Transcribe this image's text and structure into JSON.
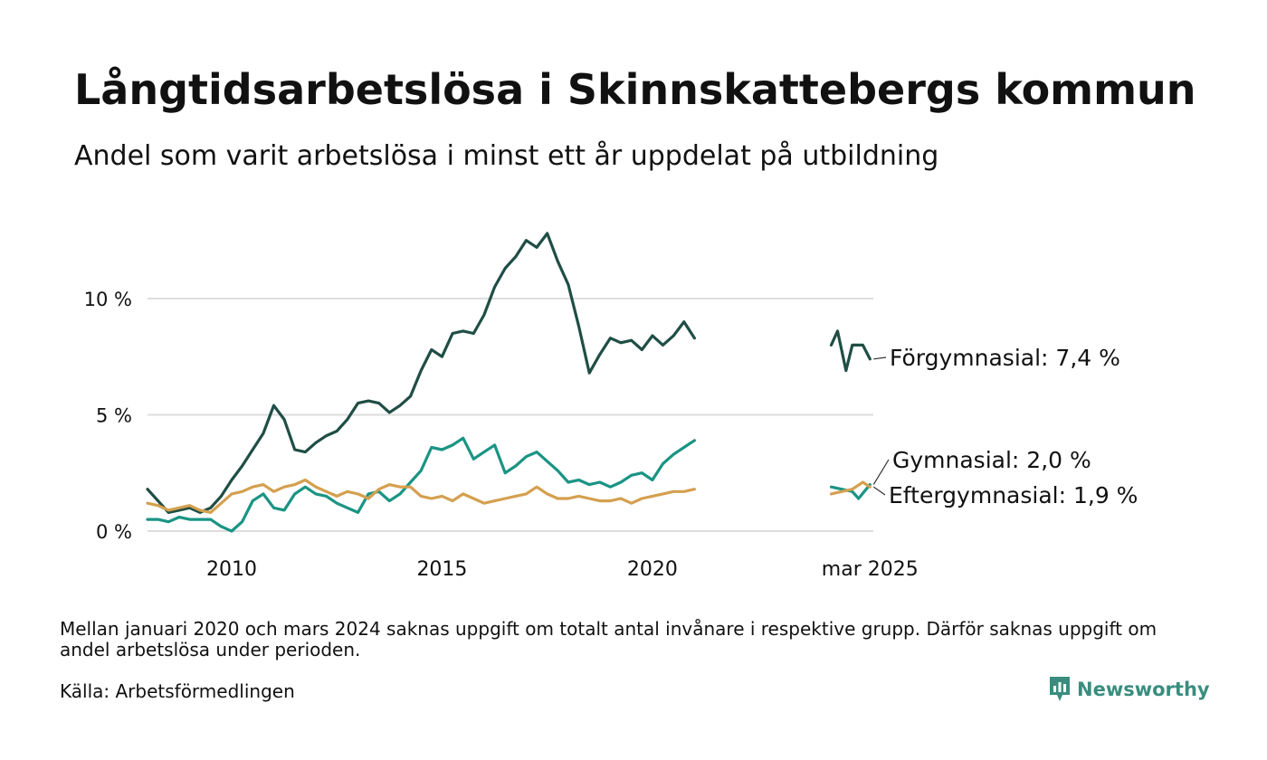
{
  "title": "Långtidsarbetslösa i Skinnskattebergs kommun",
  "subtitle": "Andel som varit arbetslösa i minst ett år uppdelat på utbildning",
  "footnote": "Mellan januari 2020 och mars 2024 saknas uppgift om totalt antal invånare i respektive grupp. Därför saknas uppgift om andel arbetslösa under perioden.",
  "source": "Källa: Arbetsförmedlingen",
  "brand": "Newsworthy",
  "colors": {
    "forgymnasial": "#1f4e45",
    "gymnasial": "#1a9484",
    "eftergymnasial": "#d4a04f",
    "grid": "#dddddd",
    "brand": "#3a8d7e"
  },
  "chart_data": {
    "type": "line",
    "x_unit": "year",
    "xlim": [
      2008.0,
      2025.25
    ],
    "ylim": [
      0,
      13.5
    ],
    "y_ticks": [
      {
        "value": 0,
        "label": "0 %"
      },
      {
        "value": 5,
        "label": "5 %"
      },
      {
        "value": 10,
        "label": "10 %"
      }
    ],
    "x_ticks": [
      {
        "value": 2010,
        "label": "2010"
      },
      {
        "value": 2015,
        "label": "2015"
      },
      {
        "value": 2020,
        "label": "2020"
      },
      {
        "value": 2025.17,
        "label": "mar 2025"
      }
    ],
    "grid": true,
    "legend": "end-labels",
    "series": [
      {
        "name": "Förgymnasial",
        "end_label": "Förgymnasial: 7,4 %",
        "color": "#1f4e45",
        "segments": [
          [
            [
              2008.0,
              1.8
            ],
            [
              2008.25,
              1.3
            ],
            [
              2008.5,
              0.8
            ],
            [
              2008.75,
              0.9
            ],
            [
              2009.0,
              1.0
            ],
            [
              2009.25,
              0.8
            ],
            [
              2009.5,
              1.0
            ],
            [
              2009.75,
              1.5
            ],
            [
              2010.0,
              2.2
            ],
            [
              2010.25,
              2.8
            ],
            [
              2010.5,
              3.5
            ],
            [
              2010.75,
              4.2
            ],
            [
              2011.0,
              5.4
            ],
            [
              2011.25,
              4.8
            ],
            [
              2011.5,
              3.5
            ],
            [
              2011.75,
              3.4
            ],
            [
              2012.0,
              3.8
            ],
            [
              2012.25,
              4.1
            ],
            [
              2012.5,
              4.3
            ],
            [
              2012.75,
              4.8
            ],
            [
              2013.0,
              5.5
            ],
            [
              2013.25,
              5.6
            ],
            [
              2013.5,
              5.5
            ],
            [
              2013.75,
              5.1
            ],
            [
              2014.0,
              5.4
            ],
            [
              2014.25,
              5.8
            ],
            [
              2014.5,
              6.9
            ],
            [
              2014.75,
              7.8
            ],
            [
              2015.0,
              7.5
            ],
            [
              2015.25,
              8.5
            ],
            [
              2015.5,
              8.6
            ],
            [
              2015.75,
              8.5
            ],
            [
              2016.0,
              9.3
            ],
            [
              2016.25,
              10.5
            ],
            [
              2016.5,
              11.3
            ],
            [
              2016.75,
              11.8
            ],
            [
              2017.0,
              12.5
            ],
            [
              2017.25,
              12.2
            ],
            [
              2017.5,
              12.8
            ],
            [
              2017.75,
              11.6
            ],
            [
              2018.0,
              10.6
            ],
            [
              2018.25,
              8.8
            ],
            [
              2018.5,
              6.8
            ],
            [
              2018.75,
              7.6
            ],
            [
              2019.0,
              8.3
            ],
            [
              2019.25,
              8.1
            ],
            [
              2019.5,
              8.2
            ],
            [
              2019.75,
              7.8
            ],
            [
              2020.0,
              8.4
            ],
            [
              2020.25,
              8.0
            ],
            [
              2020.5,
              8.4
            ],
            [
              2020.75,
              9.0
            ],
            [
              2021.0,
              8.3
            ]
          ],
          [
            [
              2024.25,
              8.0
            ],
            [
              2024.4,
              8.6
            ],
            [
              2024.6,
              6.9
            ],
            [
              2024.75,
              8.0
            ],
            [
              2025.0,
              8.0
            ],
            [
              2025.17,
              7.4
            ]
          ]
        ]
      },
      {
        "name": "Gymnasial",
        "end_label": "Gymnasial: 2,0 %",
        "color": "#1a9484",
        "segments": [
          [
            [
              2008.0,
              0.5
            ],
            [
              2008.25,
              0.5
            ],
            [
              2008.5,
              0.4
            ],
            [
              2008.75,
              0.6
            ],
            [
              2009.0,
              0.5
            ],
            [
              2009.25,
              0.5
            ],
            [
              2009.5,
              0.5
            ],
            [
              2009.75,
              0.2
            ],
            [
              2010.0,
              0.0
            ],
            [
              2010.25,
              0.4
            ],
            [
              2010.5,
              1.3
            ],
            [
              2010.75,
              1.6
            ],
            [
              2011.0,
              1.0
            ],
            [
              2011.25,
              0.9
            ],
            [
              2011.5,
              1.6
            ],
            [
              2011.75,
              1.9
            ],
            [
              2012.0,
              1.6
            ],
            [
              2012.25,
              1.5
            ],
            [
              2012.5,
              1.2
            ],
            [
              2012.75,
              1.0
            ],
            [
              2013.0,
              0.8
            ],
            [
              2013.25,
              1.6
            ],
            [
              2013.5,
              1.7
            ],
            [
              2013.75,
              1.3
            ],
            [
              2014.0,
              1.6
            ],
            [
              2014.25,
              2.1
            ],
            [
              2014.5,
              2.6
            ],
            [
              2014.75,
              3.6
            ],
            [
              2015.0,
              3.5
            ],
            [
              2015.25,
              3.7
            ],
            [
              2015.5,
              4.0
            ],
            [
              2015.75,
              3.1
            ],
            [
              2016.0,
              3.4
            ],
            [
              2016.25,
              3.7
            ],
            [
              2016.5,
              2.5
            ],
            [
              2016.75,
              2.8
            ],
            [
              2017.0,
              3.2
            ],
            [
              2017.25,
              3.4
            ],
            [
              2017.5,
              3.0
            ],
            [
              2017.75,
              2.6
            ],
            [
              2018.0,
              2.1
            ],
            [
              2018.25,
              2.2
            ],
            [
              2018.5,
              2.0
            ],
            [
              2018.75,
              2.1
            ],
            [
              2019.0,
              1.9
            ],
            [
              2019.25,
              2.1
            ],
            [
              2019.5,
              2.4
            ],
            [
              2019.75,
              2.5
            ],
            [
              2020.0,
              2.2
            ],
            [
              2020.25,
              2.9
            ],
            [
              2020.5,
              3.3
            ],
            [
              2020.75,
              3.6
            ],
            [
              2021.0,
              3.9
            ]
          ],
          [
            [
              2024.25,
              1.9
            ],
            [
              2024.5,
              1.8
            ],
            [
              2024.75,
              1.7
            ],
            [
              2024.9,
              1.4
            ],
            [
              2025.17,
              2.0
            ]
          ]
        ]
      },
      {
        "name": "Eftergymnasial",
        "end_label": "Eftergymnasial: 1,9 %",
        "color": "#d4a04f",
        "segments": [
          [
            [
              2008.0,
              1.2
            ],
            [
              2008.25,
              1.1
            ],
            [
              2008.5,
              0.9
            ],
            [
              2008.75,
              1.0
            ],
            [
              2009.0,
              1.1
            ],
            [
              2009.25,
              0.9
            ],
            [
              2009.5,
              0.8
            ],
            [
              2009.75,
              1.2
            ],
            [
              2010.0,
              1.6
            ],
            [
              2010.25,
              1.7
            ],
            [
              2010.5,
              1.9
            ],
            [
              2010.75,
              2.0
            ],
            [
              2011.0,
              1.7
            ],
            [
              2011.25,
              1.9
            ],
            [
              2011.5,
              2.0
            ],
            [
              2011.75,
              2.2
            ],
            [
              2012.0,
              1.9
            ],
            [
              2012.25,
              1.7
            ],
            [
              2012.5,
              1.5
            ],
            [
              2012.75,
              1.7
            ],
            [
              2013.0,
              1.6
            ],
            [
              2013.25,
              1.4
            ],
            [
              2013.5,
              1.8
            ],
            [
              2013.75,
              2.0
            ],
            [
              2014.0,
              1.9
            ],
            [
              2014.25,
              1.9
            ],
            [
              2014.5,
              1.5
            ],
            [
              2014.75,
              1.4
            ],
            [
              2015.0,
              1.5
            ],
            [
              2015.25,
              1.3
            ],
            [
              2015.5,
              1.6
            ],
            [
              2015.75,
              1.4
            ],
            [
              2016.0,
              1.2
            ],
            [
              2016.25,
              1.3
            ],
            [
              2016.5,
              1.4
            ],
            [
              2016.75,
              1.5
            ],
            [
              2017.0,
              1.6
            ],
            [
              2017.25,
              1.9
            ],
            [
              2017.5,
              1.6
            ],
            [
              2017.75,
              1.4
            ],
            [
              2018.0,
              1.4
            ],
            [
              2018.25,
              1.5
            ],
            [
              2018.5,
              1.4
            ],
            [
              2018.75,
              1.3
            ],
            [
              2019.0,
              1.3
            ],
            [
              2019.25,
              1.4
            ],
            [
              2019.5,
              1.2
            ],
            [
              2019.75,
              1.4
            ],
            [
              2020.0,
              1.5
            ],
            [
              2020.25,
              1.6
            ],
            [
              2020.5,
              1.7
            ],
            [
              2020.75,
              1.7
            ],
            [
              2021.0,
              1.8
            ]
          ],
          [
            [
              2024.25,
              1.6
            ],
            [
              2024.5,
              1.7
            ],
            [
              2024.75,
              1.8
            ],
            [
              2025.0,
              2.1
            ],
            [
              2025.17,
              1.9
            ]
          ]
        ]
      }
    ]
  }
}
